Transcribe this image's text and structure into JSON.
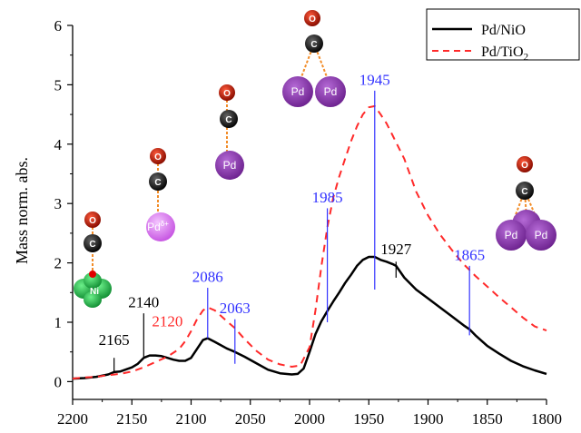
{
  "chart_data": {
    "type": "line",
    "xlabel": "",
    "ylabel": "Mass norm. abs.",
    "xlim": [
      2200,
      1800
    ],
    "ylim": [
      -0.3,
      6
    ],
    "x_reversed": true,
    "xticks": [
      2200,
      2150,
      2100,
      2050,
      2000,
      1950,
      1900,
      1850,
      1800
    ],
    "yticks": [
      0,
      1,
      2,
      3,
      4,
      5,
      6
    ],
    "grid": false,
    "legend_position": "top-right",
    "series": [
      {
        "name": "Pd/NiO",
        "color": "#000000",
        "style": "solid",
        "x": [
          2200,
          2190,
          2180,
          2170,
          2165,
          2160,
          2150,
          2145,
          2140,
          2135,
          2130,
          2125,
          2120,
          2115,
          2110,
          2105,
          2100,
          2095,
          2090,
          2086,
          2080,
          2070,
          2063,
          2055,
          2045,
          2035,
          2025,
          2015,
          2010,
          2005,
          2000,
          1995,
          1990,
          1985,
          1980,
          1975,
          1970,
          1965,
          1960,
          1955,
          1950,
          1945,
          1940,
          1935,
          1930,
          1927,
          1920,
          1910,
          1900,
          1890,
          1880,
          1870,
          1865,
          1860,
          1850,
          1840,
          1830,
          1820,
          1810,
          1800
        ],
        "y": [
          0.05,
          0.06,
          0.08,
          0.12,
          0.16,
          0.17,
          0.24,
          0.3,
          0.4,
          0.44,
          0.44,
          0.43,
          0.4,
          0.37,
          0.35,
          0.35,
          0.4,
          0.55,
          0.7,
          0.73,
          0.67,
          0.56,
          0.5,
          0.42,
          0.31,
          0.2,
          0.14,
          0.12,
          0.13,
          0.22,
          0.5,
          0.8,
          1.02,
          1.19,
          1.35,
          1.5,
          1.66,
          1.8,
          1.95,
          2.05,
          2.1,
          2.1,
          2.05,
          2.02,
          1.98,
          1.95,
          1.75,
          1.55,
          1.4,
          1.25,
          1.1,
          0.95,
          0.88,
          0.78,
          0.6,
          0.47,
          0.35,
          0.26,
          0.19,
          0.13
        ]
      },
      {
        "name": "Pd/TiO2",
        "color": "#ff2a2a",
        "style": "dashed",
        "x": [
          2200,
          2190,
          2180,
          2170,
          2160,
          2150,
          2140,
          2130,
          2120,
          2110,
          2105,
          2100,
          2095,
          2090,
          2086,
          2080,
          2070,
          2063,
          2055,
          2045,
          2035,
          2025,
          2015,
          2008,
          2000,
          1995,
          1990,
          1985,
          1980,
          1975,
          1970,
          1965,
          1960,
          1955,
          1950,
          1945,
          1940,
          1935,
          1930,
          1920,
          1910,
          1900,
          1890,
          1880,
          1870,
          1865,
          1860,
          1850,
          1840,
          1830,
          1820,
          1810,
          1800
        ],
        "y": [
          0.05,
          0.07,
          0.08,
          0.11,
          0.13,
          0.17,
          0.24,
          0.33,
          0.42,
          0.55,
          0.68,
          0.85,
          1.05,
          1.2,
          1.25,
          1.2,
          1.02,
          0.9,
          0.72,
          0.52,
          0.37,
          0.29,
          0.25,
          0.27,
          0.58,
          1.2,
          1.95,
          2.6,
          3.1,
          3.45,
          3.75,
          4.05,
          4.3,
          4.5,
          4.62,
          4.64,
          4.5,
          4.35,
          4.15,
          3.75,
          3.2,
          2.8,
          2.48,
          2.22,
          1.98,
          1.88,
          1.78,
          1.6,
          1.42,
          1.25,
          1.08,
          0.93,
          0.86
        ]
      }
    ],
    "annotations": [
      {
        "text": "2165",
        "x": 2165,
        "color": "#000000",
        "line_from": 0.17,
        "line_to": 0.4,
        "text_y": 0.62
      },
      {
        "text": "2140",
        "x": 2140,
        "color": "#000000",
        "line_from": 0.42,
        "line_to": 1.15,
        "text_y": 1.25
      },
      {
        "text": "2120",
        "x": 2120,
        "color": "#ff2a2a",
        "line_from": null,
        "line_to": null,
        "text_y": 0.93
      },
      {
        "text": "2086",
        "x": 2086,
        "color": "#3333ff",
        "line_from": 0.73,
        "line_to": 1.58,
        "text_y": 1.68
      },
      {
        "text": "2063",
        "x": 2063,
        "color": "#3333ff",
        "line_from": 0.3,
        "line_to": 1.05,
        "text_y": 1.15
      },
      {
        "text": "1985",
        "x": 1985,
        "color": "#3333ff",
        "line_from": 1.0,
        "line_to": 2.92,
        "text_y": 3.02
      },
      {
        "text": "1945",
        "x": 1945,
        "color": "#3333ff",
        "line_from": 1.55,
        "line_to": 4.9,
        "text_y": 5.0
      },
      {
        "text": "1927",
        "x": 1927,
        "color": "#000000",
        "line_from": 1.75,
        "line_to": 2.02,
        "text_y": 2.15
      },
      {
        "text": "1865",
        "x": 1865,
        "color": "#3333ff",
        "line_from": 0.78,
        "line_to": 1.95,
        "text_y": 2.05
      }
    ],
    "legend": [
      {
        "label": "Pd/NiO",
        "color": "#000000",
        "style": "solid"
      },
      {
        "label": "Pd/TiO",
        "subscript": "2",
        "color": "#ff2a2a",
        "style": "dashed"
      }
    ],
    "molecule_labels": {
      "oxygen": "O",
      "carbon": "C",
      "palladium": "Pd",
      "palladium_ion": "Pd",
      "palladium_ion_charge": "δ+",
      "nickel": "Ni"
    }
  }
}
